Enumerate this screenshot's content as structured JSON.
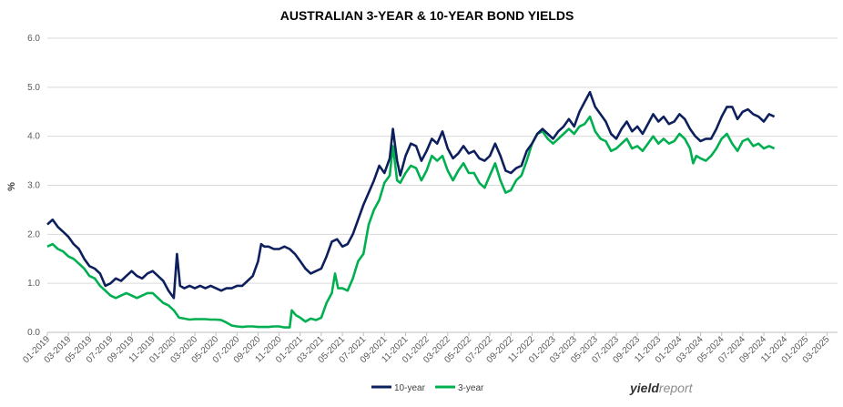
{
  "chart_data": {
    "type": "line",
    "title": "AUSTRALIAN 3-YEAR & 10-YEAR BOND YIELDS",
    "ylabel": "%",
    "xlabel": "",
    "ylim": [
      0,
      6
    ],
    "yticks": [
      "0.0",
      "1.0",
      "2.0",
      "3.0",
      "4.0",
      "5.0",
      "6.0"
    ],
    "xticks": [
      "01-2019",
      "03-2019",
      "05-2019",
      "07-2019",
      "09-2019",
      "11-2019",
      "01-2020",
      "03-2020",
      "05-2020",
      "07-2020",
      "09-2020",
      "11-2020",
      "01-2021",
      "03-2021",
      "05-2021",
      "07-2021",
      "09-2021",
      "11-2021",
      "01-2022",
      "03-2022",
      "05-2022",
      "07-2022",
      "09-2022",
      "11-2022",
      "01-2023",
      "03-2023",
      "05-2023",
      "07-2023",
      "09-2023",
      "11-2023",
      "01-2024",
      "03-2024",
      "05-2024",
      "07-2024",
      "09-2024",
      "11-2024",
      "01-2025",
      "03-2025"
    ],
    "grid": true,
    "legend_position": "bottom",
    "series": [
      {
        "name": "10-year",
        "color": "#0d1f5c",
        "points": [
          [
            0,
            2.2
          ],
          [
            0.5,
            2.3
          ],
          [
            1,
            2.15
          ],
          [
            1.5,
            2.05
          ],
          [
            2,
            1.95
          ],
          [
            2.5,
            1.8
          ],
          [
            3,
            1.7
          ],
          [
            3.5,
            1.5
          ],
          [
            4,
            1.35
          ],
          [
            4.5,
            1.3
          ],
          [
            5,
            1.2
          ],
          [
            5.5,
            0.95
          ],
          [
            6,
            1.0
          ],
          [
            6.5,
            1.1
          ],
          [
            7,
            1.05
          ],
          [
            7.5,
            1.15
          ],
          [
            8,
            1.25
          ],
          [
            8.5,
            1.15
          ],
          [
            9,
            1.1
          ],
          [
            9.5,
            1.2
          ],
          [
            10,
            1.25
          ],
          [
            10.5,
            1.15
          ],
          [
            11,
            1.05
          ],
          [
            11.5,
            0.85
          ],
          [
            12,
            0.7
          ],
          [
            12.3,
            1.6
          ],
          [
            12.6,
            0.95
          ],
          [
            13,
            0.9
          ],
          [
            13.5,
            0.95
          ],
          [
            14,
            0.9
          ],
          [
            14.5,
            0.95
          ],
          [
            15,
            0.9
          ],
          [
            15.5,
            0.95
          ],
          [
            16,
            0.9
          ],
          [
            16.5,
            0.85
          ],
          [
            17,
            0.9
          ],
          [
            17.5,
            0.9
          ],
          [
            18,
            0.95
          ],
          [
            18.5,
            0.95
          ],
          [
            19,
            1.05
          ],
          [
            19.5,
            1.15
          ],
          [
            20,
            1.45
          ],
          [
            20.3,
            1.8
          ],
          [
            20.6,
            1.75
          ],
          [
            21,
            1.75
          ],
          [
            21.5,
            1.7
          ],
          [
            22,
            1.7
          ],
          [
            22.5,
            1.75
          ],
          [
            23,
            1.7
          ],
          [
            23.5,
            1.6
          ],
          [
            24,
            1.45
          ],
          [
            24.5,
            1.3
          ],
          [
            25,
            1.2
          ],
          [
            25.5,
            1.25
          ],
          [
            26,
            1.3
          ],
          [
            26.5,
            1.55
          ],
          [
            27,
            1.85
          ],
          [
            27.5,
            1.9
          ],
          [
            28,
            1.75
          ],
          [
            28.5,
            1.8
          ],
          [
            29,
            2.0
          ],
          [
            29.5,
            2.3
          ],
          [
            30,
            2.6
          ],
          [
            30.5,
            2.85
          ],
          [
            31,
            3.1
          ],
          [
            31.5,
            3.4
          ],
          [
            32,
            3.25
          ],
          [
            32.5,
            3.55
          ],
          [
            32.8,
            4.15
          ],
          [
            33.2,
            3.5
          ],
          [
            33.5,
            3.2
          ],
          [
            34,
            3.6
          ],
          [
            34.5,
            3.85
          ],
          [
            35,
            3.8
          ],
          [
            35.5,
            3.5
          ],
          [
            36,
            3.7
          ],
          [
            36.5,
            3.95
          ],
          [
            37,
            3.85
          ],
          [
            37.5,
            4.1
          ],
          [
            38,
            3.75
          ],
          [
            38.5,
            3.55
          ],
          [
            39,
            3.65
          ],
          [
            39.5,
            3.8
          ],
          [
            40,
            3.65
          ],
          [
            40.5,
            3.7
          ],
          [
            41,
            3.55
          ],
          [
            41.5,
            3.5
          ],
          [
            42,
            3.6
          ],
          [
            42.5,
            3.85
          ],
          [
            43,
            3.6
          ],
          [
            43.5,
            3.3
          ],
          [
            44,
            3.25
          ],
          [
            44.5,
            3.35
          ],
          [
            45,
            3.4
          ],
          [
            45.5,
            3.7
          ],
          [
            46,
            3.85
          ],
          [
            46.5,
            4.05
          ],
          [
            47,
            4.15
          ],
          [
            47.5,
            4.05
          ],
          [
            48,
            3.95
          ],
          [
            48.5,
            4.1
          ],
          [
            49,
            4.2
          ],
          [
            49.5,
            4.35
          ],
          [
            50,
            4.2
          ],
          [
            50.5,
            4.5
          ],
          [
            51,
            4.7
          ],
          [
            51.5,
            4.9
          ],
          [
            52,
            4.6
          ],
          [
            52.5,
            4.45
          ],
          [
            53,
            4.3
          ],
          [
            53.5,
            4.05
          ],
          [
            54,
            3.95
          ],
          [
            54.5,
            4.15
          ],
          [
            55,
            4.3
          ],
          [
            55.5,
            4.1
          ],
          [
            56,
            4.2
          ],
          [
            56.5,
            4.05
          ],
          [
            57,
            4.25
          ],
          [
            57.5,
            4.45
          ],
          [
            58,
            4.3
          ],
          [
            58.5,
            4.4
          ],
          [
            59,
            4.25
          ],
          [
            59.5,
            4.3
          ],
          [
            60,
            4.45
          ],
          [
            60.5,
            4.35
          ],
          [
            61,
            4.15
          ],
          [
            61.5,
            4.0
          ],
          [
            62,
            3.9
          ],
          [
            62.5,
            3.95
          ],
          [
            63,
            3.95
          ],
          [
            63.5,
            4.15
          ],
          [
            64,
            4.4
          ],
          [
            64.5,
            4.6
          ],
          [
            65,
            4.6
          ],
          [
            65.5,
            4.35
          ],
          [
            66,
            4.5
          ],
          [
            66.5,
            4.55
          ],
          [
            67,
            4.45
          ],
          [
            67.5,
            4.4
          ],
          [
            68,
            4.3
          ],
          [
            68.5,
            4.45
          ],
          [
            69,
            4.4
          ]
        ]
      },
      {
        "name": "3-year",
        "color": "#00b050",
        "points": [
          [
            0,
            1.75
          ],
          [
            0.5,
            1.8
          ],
          [
            1,
            1.7
          ],
          [
            1.5,
            1.65
          ],
          [
            2,
            1.55
          ],
          [
            2.5,
            1.5
          ],
          [
            3,
            1.4
          ],
          [
            3.5,
            1.3
          ],
          [
            4,
            1.15
          ],
          [
            4.5,
            1.1
          ],
          [
            5,
            0.95
          ],
          [
            5.5,
            0.85
          ],
          [
            6,
            0.75
          ],
          [
            6.5,
            0.7
          ],
          [
            7,
            0.75
          ],
          [
            7.5,
            0.8
          ],
          [
            8,
            0.75
          ],
          [
            8.5,
            0.7
          ],
          [
            9,
            0.75
          ],
          [
            9.5,
            0.8
          ],
          [
            10,
            0.8
          ],
          [
            10.5,
            0.7
          ],
          [
            11,
            0.6
          ],
          [
            11.5,
            0.55
          ],
          [
            12,
            0.45
          ],
          [
            12.5,
            0.3
          ],
          [
            13,
            0.28
          ],
          [
            13.5,
            0.26
          ],
          [
            14,
            0.27
          ],
          [
            14.5,
            0.27
          ],
          [
            15,
            0.27
          ],
          [
            15.5,
            0.26
          ],
          [
            16,
            0.26
          ],
          [
            16.5,
            0.25
          ],
          [
            17,
            0.2
          ],
          [
            17.5,
            0.14
          ],
          [
            18,
            0.12
          ],
          [
            18.5,
            0.11
          ],
          [
            19,
            0.12
          ],
          [
            19.5,
            0.12
          ],
          [
            20,
            0.11
          ],
          [
            20.5,
            0.11
          ],
          [
            21,
            0.11
          ],
          [
            21.5,
            0.12
          ],
          [
            22,
            0.12
          ],
          [
            22.5,
            0.1
          ],
          [
            23,
            0.1
          ],
          [
            23.2,
            0.45
          ],
          [
            23.6,
            0.35
          ],
          [
            24,
            0.3
          ],
          [
            24.5,
            0.22
          ],
          [
            25,
            0.28
          ],
          [
            25.5,
            0.25
          ],
          [
            26,
            0.3
          ],
          [
            26.5,
            0.6
          ],
          [
            27,
            0.8
          ],
          [
            27.3,
            1.2
          ],
          [
            27.6,
            0.9
          ],
          [
            28,
            0.9
          ],
          [
            28.5,
            0.85
          ],
          [
            29,
            1.1
          ],
          [
            29.5,
            1.45
          ],
          [
            30,
            1.6
          ],
          [
            30.5,
            2.2
          ],
          [
            31,
            2.5
          ],
          [
            31.5,
            2.7
          ],
          [
            32,
            3.05
          ],
          [
            32.5,
            3.2
          ],
          [
            32.8,
            3.8
          ],
          [
            33.2,
            3.1
          ],
          [
            33.5,
            3.05
          ],
          [
            34,
            3.25
          ],
          [
            34.5,
            3.4
          ],
          [
            35,
            3.35
          ],
          [
            35.5,
            3.1
          ],
          [
            36,
            3.3
          ],
          [
            36.5,
            3.6
          ],
          [
            37,
            3.5
          ],
          [
            37.5,
            3.6
          ],
          [
            38,
            3.3
          ],
          [
            38.5,
            3.1
          ],
          [
            39,
            3.3
          ],
          [
            39.5,
            3.45
          ],
          [
            40,
            3.25
          ],
          [
            40.5,
            3.25
          ],
          [
            41,
            3.05
          ],
          [
            41.5,
            2.95
          ],
          [
            42,
            3.2
          ],
          [
            42.5,
            3.45
          ],
          [
            43,
            3.1
          ],
          [
            43.5,
            2.85
          ],
          [
            44,
            2.9
          ],
          [
            44.5,
            3.1
          ],
          [
            45,
            3.2
          ],
          [
            45.5,
            3.5
          ],
          [
            46,
            3.85
          ],
          [
            46.5,
            4.05
          ],
          [
            47,
            4.1
          ],
          [
            47.5,
            3.95
          ],
          [
            48,
            3.85
          ],
          [
            48.5,
            3.95
          ],
          [
            49,
            4.05
          ],
          [
            49.5,
            4.15
          ],
          [
            50,
            4.05
          ],
          [
            50.5,
            4.2
          ],
          [
            51,
            4.25
          ],
          [
            51.5,
            4.4
          ],
          [
            52,
            4.1
          ],
          [
            52.5,
            3.95
          ],
          [
            53,
            3.9
          ],
          [
            53.5,
            3.7
          ],
          [
            54,
            3.75
          ],
          [
            54.5,
            3.85
          ],
          [
            55,
            3.95
          ],
          [
            55.5,
            3.75
          ],
          [
            56,
            3.8
          ],
          [
            56.5,
            3.7
          ],
          [
            57,
            3.85
          ],
          [
            57.5,
            4.0
          ],
          [
            58,
            3.85
          ],
          [
            58.5,
            3.95
          ],
          [
            59,
            3.85
          ],
          [
            59.5,
            3.9
          ],
          [
            60,
            4.05
          ],
          [
            60.5,
            3.95
          ],
          [
            61,
            3.75
          ],
          [
            61.3,
            3.45
          ],
          [
            61.6,
            3.6
          ],
          [
            62,
            3.55
          ],
          [
            62.5,
            3.5
          ],
          [
            63,
            3.6
          ],
          [
            63.5,
            3.75
          ],
          [
            64,
            3.95
          ],
          [
            64.5,
            4.05
          ],
          [
            65,
            3.85
          ],
          [
            65.5,
            3.7
          ],
          [
            66,
            3.9
          ],
          [
            66.5,
            3.95
          ],
          [
            67,
            3.8
          ],
          [
            67.5,
            3.85
          ],
          [
            68,
            3.75
          ],
          [
            68.5,
            3.8
          ],
          [
            69,
            3.75
          ]
        ]
      }
    ]
  },
  "brand": {
    "part1": "yield",
    "part2": "report",
    "color1": "#333333",
    "color2": "#8c8c8c"
  }
}
